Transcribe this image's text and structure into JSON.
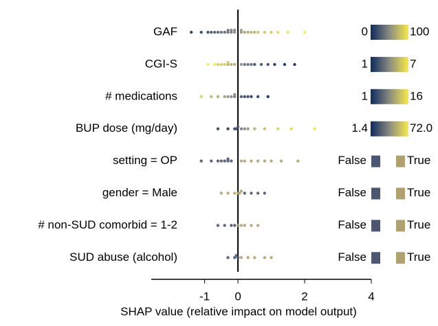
{
  "chart_data": {
    "type": "beeswarm",
    "xlabel": "SHAP value (relative impact on model output)",
    "xlim": [
      -2.6,
      4
    ],
    "xticks": [
      -1,
      0,
      2,
      4
    ],
    "gradient": [
      "#0d2a5e",
      "#8b8b80",
      "#f7ea48"
    ],
    "binary_colors": [
      "#4d5670",
      "#b0a270"
    ],
    "series": [
      {
        "name": "GAF",
        "legend": "continuous",
        "range": [
          0,
          100
        ],
        "values": [
          -1.4,
          -1.1,
          -0.9,
          -0.8,
          -0.7,
          -0.6,
          -0.5,
          -0.4,
          -0.3,
          -0.3,
          -0.2,
          -0.2,
          -0.1,
          -0.1,
          0.1,
          0.1,
          0.2,
          0.3,
          0.4,
          0.5,
          0.6,
          0.8,
          1.0,
          1.2,
          1.5,
          2.0
        ],
        "feature_values": [
          5,
          10,
          15,
          20,
          25,
          25,
          30,
          30,
          35,
          40,
          40,
          45,
          50,
          45,
          55,
          60,
          60,
          65,
          70,
          70,
          75,
          80,
          85,
          90,
          95,
          100
        ]
      },
      {
        "name": "CGI-S",
        "legend": "continuous",
        "range": [
          1,
          7
        ],
        "values": [
          -0.9,
          -0.7,
          -0.6,
          -0.5,
          -0.4,
          -0.3,
          -0.3,
          -0.2,
          -0.1,
          0.1,
          0.2,
          0.3,
          0.4,
          0.5,
          0.7,
          0.9,
          1.1,
          1.4,
          1.7
        ],
        "feature_values": [
          7,
          7,
          6,
          6,
          6,
          5,
          6,
          5,
          5,
          4,
          3,
          3,
          3,
          2,
          2,
          2,
          1,
          1,
          1
        ]
      },
      {
        "name": "# medications",
        "legend": "continuous",
        "range": [
          1,
          16
        ],
        "values": [
          -1.1,
          -0.8,
          -0.6,
          -0.4,
          -0.3,
          -0.2,
          -0.1,
          -0.1,
          0.1,
          0.2,
          0.3,
          0.4,
          0.6,
          0.9
        ],
        "feature_values": [
          14,
          12,
          11,
          10,
          9,
          8,
          7,
          8,
          4,
          3,
          3,
          2,
          2,
          1
        ]
      },
      {
        "name": "BUP dose (mg/day)",
        "legend": "continuous",
        "range": [
          1.4,
          {
            "value": 72,
            "label": "72.0"
          }
        ],
        "values": [
          -0.6,
          -0.3,
          -0.1,
          -0.05,
          0,
          0.1,
          0.2,
          0.3,
          0.5,
          0.8,
          1.2,
          1.6,
          2.3
        ],
        "feature_values": [
          10,
          8,
          12,
          15,
          20,
          30,
          35,
          40,
          50,
          55,
          60,
          65,
          70
        ]
      },
      {
        "name": "setting = OP",
        "legend": "binary",
        "labels": [
          "False",
          "True"
        ],
        "values": [
          -1.1,
          -0.8,
          -0.6,
          -0.5,
          -0.4,
          -0.3,
          -0.3,
          -0.2,
          0.1,
          0.2,
          0.4,
          0.6,
          0.8,
          1.0,
          1.3,
          1.8
        ],
        "feature_values": [
          0,
          0,
          0,
          0,
          0,
          0,
          0,
          0,
          1,
          1,
          1,
          1,
          1,
          1,
          1,
          1
        ]
      },
      {
        "name": "gender = Male",
        "legend": "binary",
        "labels": [
          "False",
          "True"
        ],
        "values": [
          -0.5,
          -0.3,
          -0.1,
          0,
          0.05,
          0.1,
          0.2,
          0.4,
          0.6,
          0.8
        ],
        "feature_values": [
          1,
          1,
          1,
          1,
          1,
          1,
          0,
          0,
          0,
          0
        ]
      },
      {
        "name": "# non-SUD comorbid = 1-2",
        "legend": "binary",
        "labels": [
          "False",
          "True"
        ],
        "values": [
          -0.6,
          -0.4,
          -0.2,
          -0.1,
          0,
          0.1,
          0.2,
          0.4,
          0.6
        ],
        "feature_values": [
          0,
          0,
          0,
          0,
          1,
          1,
          1,
          1,
          1
        ]
      },
      {
        "name": "SUD abuse (alcohol)",
        "legend": "binary",
        "labels": [
          "False",
          "True"
        ],
        "values": [
          -0.3,
          -0.1,
          0,
          -0.05,
          0.1,
          0.3,
          0.5,
          0.8,
          1.0
        ],
        "feature_values": [
          0,
          0,
          0,
          0,
          1,
          1,
          1,
          1,
          1
        ]
      }
    ]
  }
}
